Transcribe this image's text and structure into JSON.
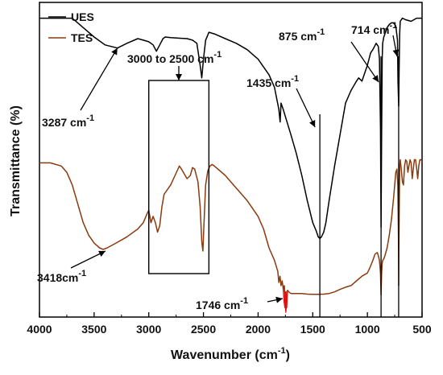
{
  "chart_data": {
    "type": "line",
    "xlabel": "Wavenumber (cm",
    "xlabel_sup": "-1",
    "xlabel_end": ")",
    "ylabel": "Transmittance (%)",
    "xlim": [
      4000,
      500
    ],
    "x_ticks": [
      4000,
      3500,
      3000,
      2500,
      2000,
      1500,
      1000,
      500
    ],
    "legend_position": "top-left",
    "series": [
      {
        "name": "UES",
        "color": "#000000",
        "x": [
          4000,
          3850,
          3700,
          3600,
          3500,
          3400,
          3287,
          3200,
          3100,
          3050,
          3000,
          2960,
          2930,
          2900,
          2870,
          2850,
          2800,
          2700,
          2650,
          2600,
          2560,
          2530,
          2515,
          2500,
          2480,
          2450,
          2400,
          2300,
          2200,
          2100,
          2000,
          1900,
          1850,
          1810,
          1798,
          1790,
          1770,
          1700,
          1650,
          1600,
          1550,
          1500,
          1470,
          1450,
          1435,
          1420,
          1400,
          1380,
          1350,
          1300,
          1250,
          1200,
          1150,
          1100,
          1080,
          1050,
          1020,
          1000,
          970,
          950,
          920,
          900,
          890,
          880,
          875,
          870,
          865,
          860,
          850,
          840,
          820,
          800,
          780,
          760,
          740,
          725,
          720,
          714,
          710,
          705,
          700,
          680,
          650,
          600,
          550,
          500
        ],
        "y": [
          95.0,
          95.0,
          95.0,
          92.0,
          89.0,
          86.5,
          85.5,
          87.0,
          88.5,
          88.0,
          87.5,
          86.5,
          84.5,
          86.5,
          88.5,
          89.0,
          88.8,
          88.6,
          88.5,
          88.0,
          87.0,
          80.0,
          76.0,
          82.0,
          88.0,
          90.5,
          90.0,
          88.5,
          87.0,
          85.0,
          82.0,
          77.0,
          73.0,
          66.0,
          62.0,
          68.0,
          66.0,
          58.0,
          52.0,
          45.0,
          37.0,
          30.0,
          27.5,
          25.5,
          25.0,
          25.5,
          27.0,
          30.0,
          37.0,
          48.0,
          58.0,
          68.0,
          72.0,
          75.0,
          76.0,
          75.0,
          78.0,
          80.0,
          84.0,
          85.0,
          87.0,
          86.0,
          82.0,
          60.0,
          28.5,
          58.0,
          82.0,
          87.0,
          89.0,
          90.0,
          92.0,
          93.0,
          93.5,
          93.5,
          92.5,
          88.0,
          75.0,
          67.0,
          78.0,
          90.0,
          94.0,
          95.0,
          94.5,
          94.0,
          95.0,
          95.0
        ]
      },
      {
        "name": "TES",
        "color": "#8B3A0E",
        "x": [
          4000,
          3900,
          3800,
          3750,
          3700,
          3650,
          3600,
          3550,
          3500,
          3450,
          3418,
          3380,
          3300,
          3200,
          3100,
          3050,
          3020,
          3000,
          2980,
          2960,
          2940,
          2920,
          2900,
          2880,
          2860,
          2800,
          2760,
          2720,
          2700,
          2650,
          2620,
          2600,
          2580,
          2550,
          2530,
          2515,
          2505,
          2495,
          2480,
          2460,
          2440,
          2420,
          2400,
          2300,
          2200,
          2100,
          2000,
          1950,
          1900,
          1850,
          1820,
          1810,
          1800,
          1790,
          1780,
          1770,
          1760,
          1755,
          1750,
          1746,
          1742,
          1738,
          1730,
          1720,
          1700,
          1650,
          1600,
          1550,
          1500,
          1450,
          1400,
          1350,
          1300,
          1250,
          1200,
          1150,
          1100,
          1050,
          1000,
          980,
          950,
          930,
          910,
          900,
          890,
          880,
          875,
          870,
          865,
          860,
          850,
          840,
          820,
          800,
          780,
          760,
          740,
          730,
          722,
          716,
          714,
          712,
          708,
          705,
          700,
          690,
          680,
          670,
          660,
          650,
          640,
          630,
          620,
          610,
          600,
          590,
          580,
          570,
          560,
          550,
          540,
          530,
          520,
          510,
          500
        ],
        "y": [
          49.0,
          49.0,
          48.0,
          46.0,
          42.0,
          36.0,
          30.0,
          26.0,
          23.5,
          22.0,
          21.5,
          22.0,
          23.5,
          25.5,
          28.0,
          30.0,
          32.5,
          34.0,
          30.0,
          32.0,
          30.0,
          27.0,
          29.0,
          35.0,
          39.0,
          42.0,
          45.0,
          48.0,
          47.0,
          44.0,
          45.0,
          47.5,
          47.0,
          43.0,
          35.0,
          24.0,
          21.0,
          30.0,
          42.0,
          46.5,
          48.0,
          48.5,
          48.0,
          45.0,
          41.0,
          37.0,
          32.0,
          28.0,
          22.0,
          18.0,
          14.5,
          11.0,
          13.0,
          10.0,
          11.5,
          9.0,
          10.0,
          7.0,
          3.0,
          2.0,
          5.0,
          8.0,
          8.5,
          8.0,
          7.5,
          7.5,
          7.5,
          7.3,
          7.2,
          7.2,
          7.3,
          7.5,
          8.0,
          8.8,
          9.5,
          10.0,
          11.5,
          13.0,
          14.0,
          15.5,
          18.0,
          20.0,
          20.5,
          19.5,
          18.0,
          14.0,
          7.0,
          14.0,
          17.0,
          18.0,
          18.5,
          19.5,
          22.0,
          26.0,
          31.0,
          38.0,
          46.0,
          47.0,
          42.0,
          25.0,
          10.0,
          22.0,
          38.0,
          48.0,
          50.0,
          47.0,
          43.0,
          42.0,
          48.0,
          50.0,
          49.5,
          46.0,
          48.0,
          50.0,
          49.0,
          44.0,
          47.0,
          50.0,
          50.0,
          47.5,
          44.0,
          48.0,
          50.0,
          50.0,
          49.5
        ]
      },
      {
        "name": "",
        "color": "#E01010",
        "x": [
          1770,
          1762,
          1755,
          1750,
          1746,
          1742,
          1738,
          1732
        ],
        "y": [
          9.0,
          5.0,
          3.0,
          8.0,
          1.5,
          6.0,
          3.0,
          8.0
        ]
      }
    ],
    "annotations": [
      {
        "id": "ues-3287",
        "base": "3287 cm",
        "sup": "-1"
      },
      {
        "id": "range-3000-2500",
        "base": "3000 to 2500 cm",
        "sup": "-1"
      },
      {
        "id": "ues-1435",
        "base": "1435 cm",
        "sup": "-1"
      },
      {
        "id": "ues-875",
        "base": "875 cm",
        "sup": "-1"
      },
      {
        "id": "ues-714",
        "base": "714 cm",
        "sup": "-1"
      },
      {
        "id": "tes-3418",
        "base": "3418cm",
        "sup": "-1"
      },
      {
        "id": "tes-1746",
        "base": "1746 cm",
        "sup": "-1"
      }
    ],
    "reference_lines_x": [
      1435,
      875,
      714
    ],
    "box": {
      "x": [
        3000,
        2450
      ]
    }
  }
}
